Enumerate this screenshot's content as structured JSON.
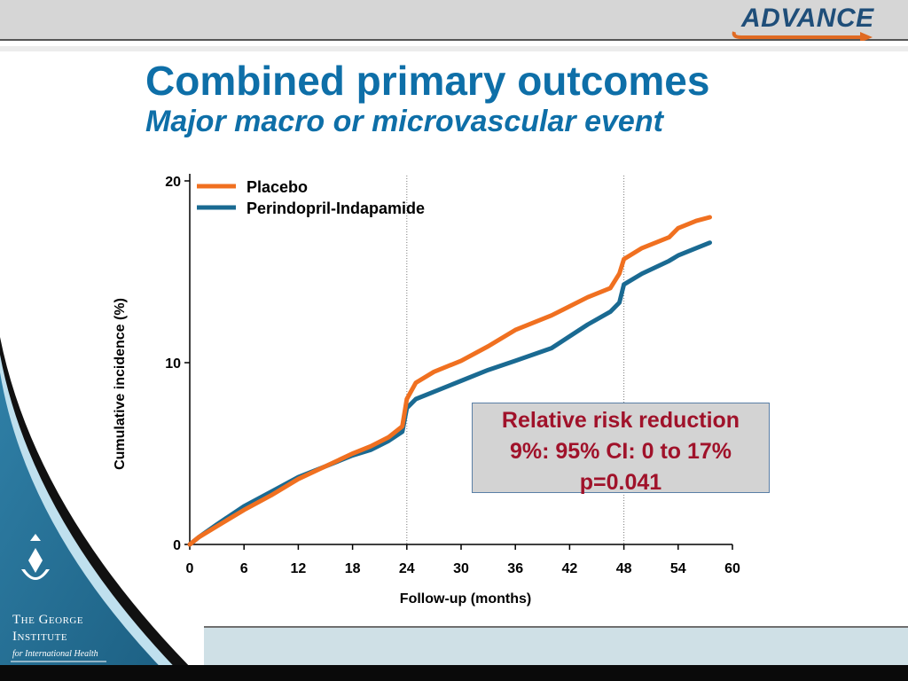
{
  "slide": {
    "title": "Combined primary outcomes",
    "subtitle": "Major macro or microvascular event",
    "logo_text": "ADVANCE",
    "institute_name_line1": "The George",
    "institute_name_line2": "Institute",
    "institute_sub": "for International Health",
    "colors": {
      "title": "#0e6fa8",
      "annotation": "#a0122a",
      "placebo": "#f07020",
      "treatment": "#1a6a92"
    }
  },
  "annotation": {
    "line1": "Relative risk reduction",
    "line2": "9%: 95% CI: 0 to 17%",
    "line3": "p=0.041"
  },
  "chart_data": {
    "type": "line",
    "title": "",
    "xlabel": "Follow-up (months)",
    "ylabel": "Cumulative incidence (%)",
    "xlim": [
      0,
      60
    ],
    "ylim": [
      0,
      20
    ],
    "xticks": [
      0,
      6,
      12,
      18,
      24,
      30,
      36,
      42,
      48,
      54,
      60
    ],
    "yticks": [
      0,
      10,
      20
    ],
    "vertical_reference_lines": [
      24,
      48
    ],
    "legend_position": "top-left",
    "series": [
      {
        "name": "Placebo",
        "color": "#f07020",
        "x": [
          0,
          1,
          3,
          6,
          9,
          12,
          15,
          18,
          20,
          22,
          23.5,
          24,
          25,
          27,
          30,
          33,
          36,
          40,
          44,
          46.5,
          47.5,
          48,
          50,
          53,
          54,
          56,
          57.5
        ],
        "y": [
          0,
          0.4,
          1.0,
          1.9,
          2.7,
          3.6,
          4.3,
          5.0,
          5.4,
          5.9,
          6.5,
          8.0,
          8.9,
          9.5,
          10.1,
          10.9,
          11.8,
          12.6,
          13.6,
          14.1,
          14.9,
          15.7,
          16.3,
          16.9,
          17.4,
          17.8,
          18.0
        ]
      },
      {
        "name": "Perindopril-Indapamide",
        "color": "#1a6a92",
        "x": [
          0,
          1,
          3,
          6,
          9,
          12,
          15,
          18,
          20,
          22,
          23.5,
          24,
          25,
          27,
          30,
          33,
          36,
          40,
          44,
          46.5,
          47.5,
          48,
          50,
          53,
          54,
          56,
          57.5
        ],
        "y": [
          0,
          0.4,
          1.1,
          2.1,
          2.9,
          3.7,
          4.3,
          4.9,
          5.2,
          5.7,
          6.2,
          7.5,
          8.0,
          8.4,
          9.0,
          9.6,
          10.1,
          10.8,
          12.1,
          12.8,
          13.3,
          14.3,
          14.9,
          15.6,
          15.9,
          16.3,
          16.6
        ]
      }
    ]
  }
}
